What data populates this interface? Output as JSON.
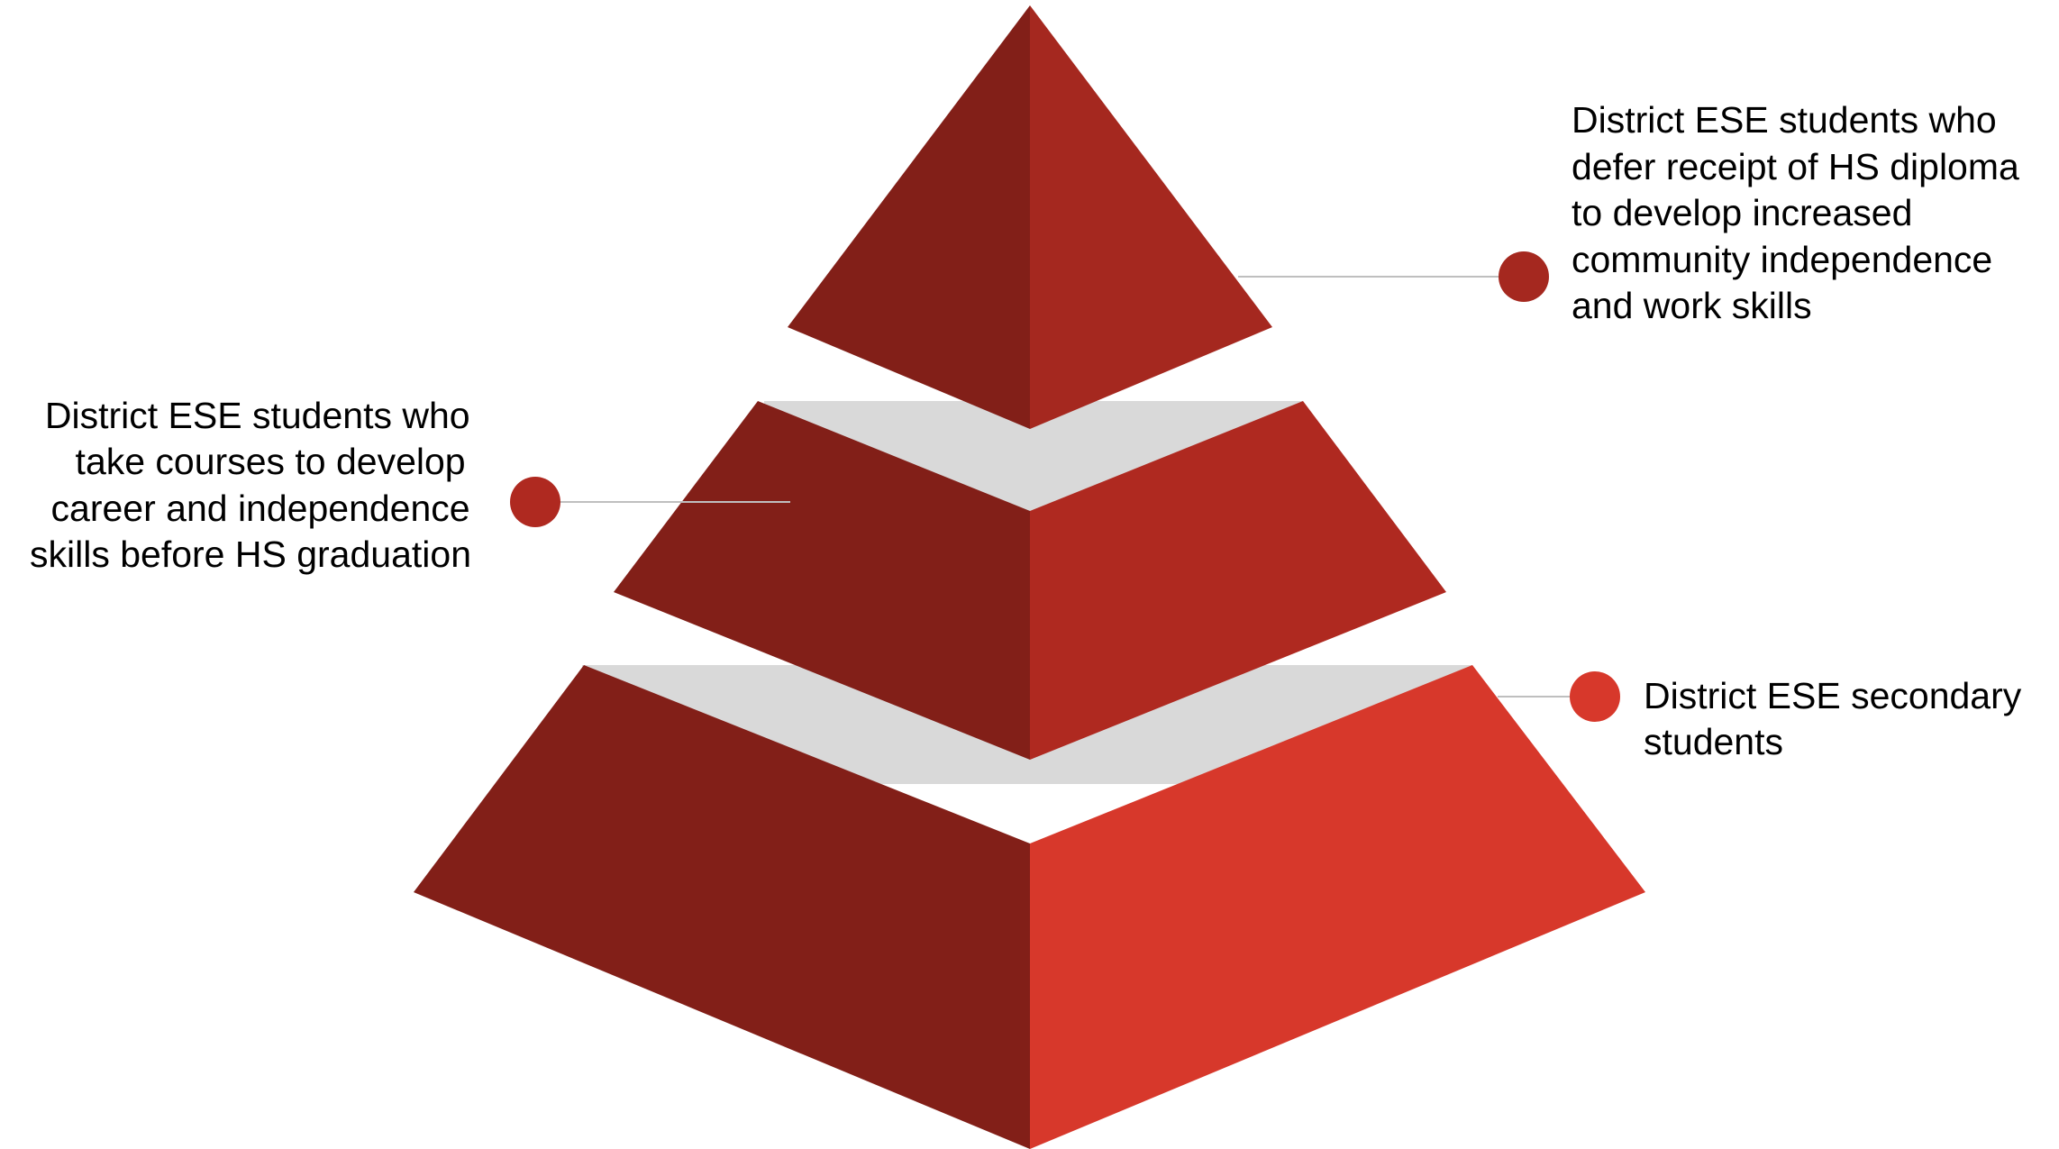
{
  "tiers": [
    {
      "level": "top",
      "label_lines": [
        "District ESE students who",
        "defer receipt of HS diploma",
        "to develop increased",
        "community independence",
        "and work skills"
      ]
    },
    {
      "level": "middle",
      "label_lines": [
        "District ESE students who",
        "take courses to develop",
        "career and independence",
        "skills before HS graduation"
      ]
    },
    {
      "level": "bottom",
      "label_lines": [
        "District ESE secondary",
        "students"
      ]
    }
  ],
  "colors": {
    "dark_face": "#821f18",
    "top_right_face": "#a5281f",
    "middle_right_face": "#af2920",
    "bottom_right_face": "#d7382b",
    "gap": "#d9d9d9",
    "leader_line": "#bfbfbf",
    "marker_top": "#a5281f",
    "marker_middle": "#af2920",
    "marker_bottom": "#d7382b"
  }
}
